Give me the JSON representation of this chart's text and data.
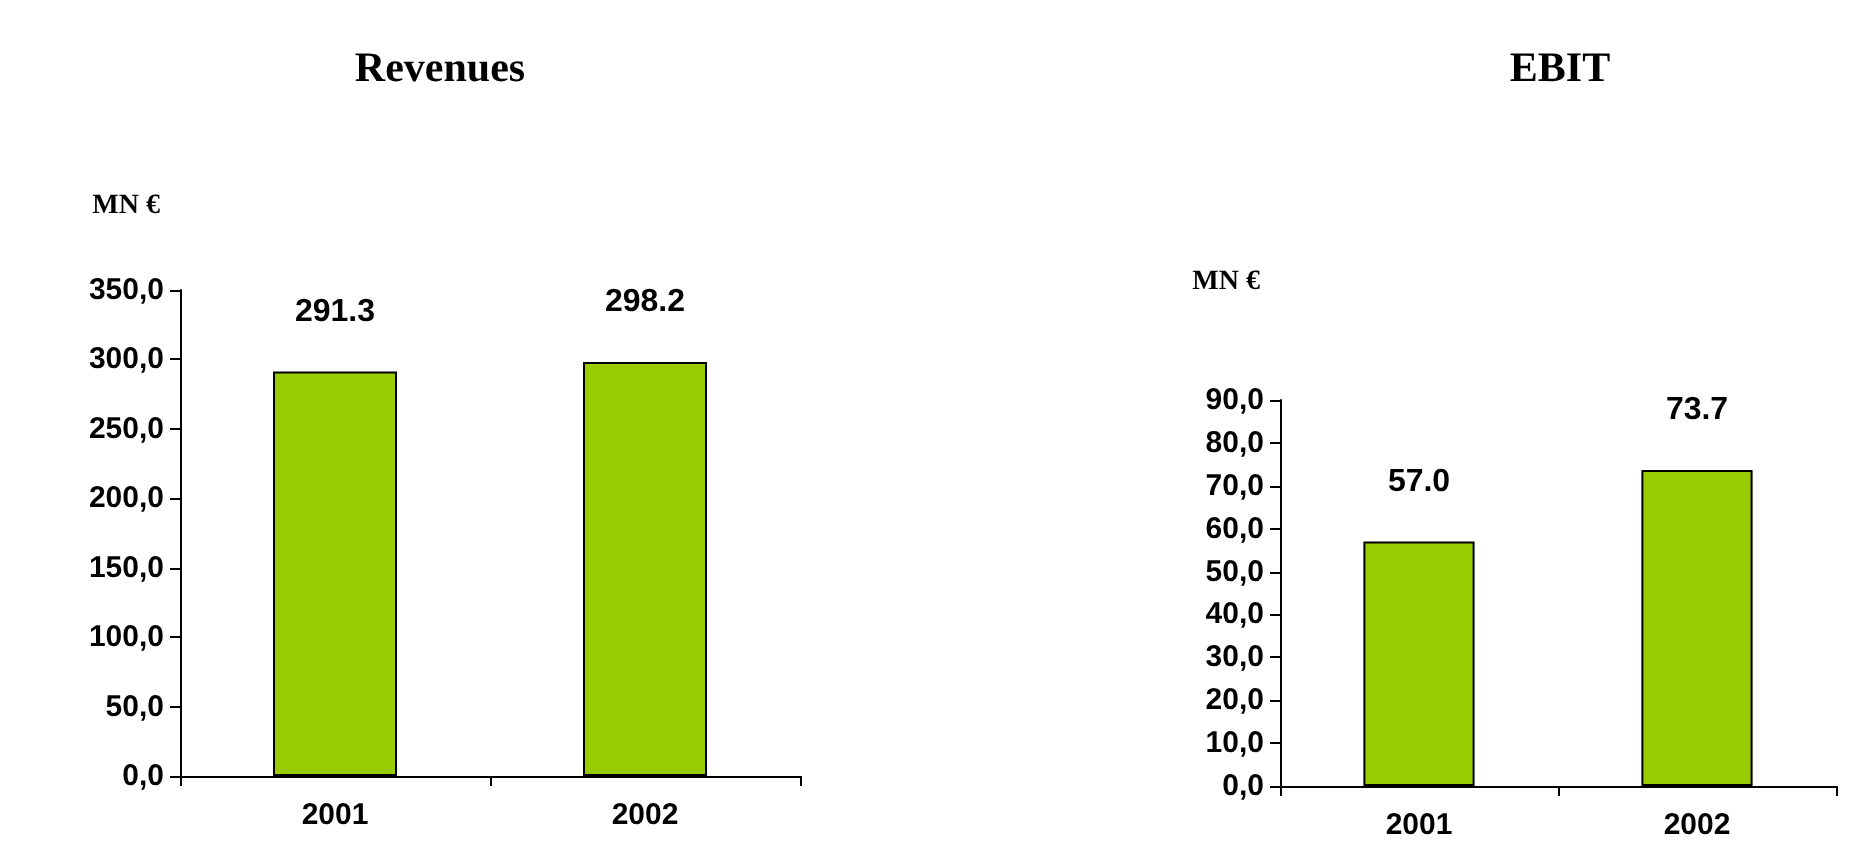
{
  "chart_data": [
    {
      "type": "bar",
      "title": "Revenues",
      "ylabel": "MN €",
      "categories": [
        "2001",
        "2002"
      ],
      "values": [
        291.3,
        298.2
      ],
      "color": "#99cc00",
      "value_labels": [
        "291.3",
        "298.2"
      ],
      "ylim": [
        0,
        350
      ],
      "yticks": [
        {
          "value": 0,
          "label": "0,0"
        },
        {
          "value": 50,
          "label": "50,0"
        },
        {
          "value": 100,
          "label": "100,0"
        },
        {
          "value": 150,
          "label": "150,0"
        },
        {
          "value": 200,
          "label": "200,0"
        },
        {
          "value": 250,
          "label": "250,0"
        },
        {
          "value": 300,
          "label": "300,0"
        },
        {
          "value": 350,
          "label": "350,0"
        }
      ],
      "grid": false
    },
    {
      "type": "bar",
      "title": "EBIT",
      "ylabel": "MN €",
      "categories": [
        "2001",
        "2002"
      ],
      "values": [
        57.0,
        73.7
      ],
      "color": "#99cc00",
      "value_labels": [
        "57.0",
        "73.7"
      ],
      "ylim": [
        0,
        90
      ],
      "yticks": [
        {
          "value": 0,
          "label": "0,0"
        },
        {
          "value": 10,
          "label": "10,0"
        },
        {
          "value": 20,
          "label": "20,0"
        },
        {
          "value": 30,
          "label": "30,0"
        },
        {
          "value": 40,
          "label": "40,0"
        },
        {
          "value": 50,
          "label": "50,0"
        },
        {
          "value": 60,
          "label": "60,0"
        },
        {
          "value": 70,
          "label": "70,0"
        },
        {
          "value": 80,
          "label": "80,0"
        },
        {
          "value": 90,
          "label": "90,0"
        }
      ],
      "grid": false
    }
  ]
}
